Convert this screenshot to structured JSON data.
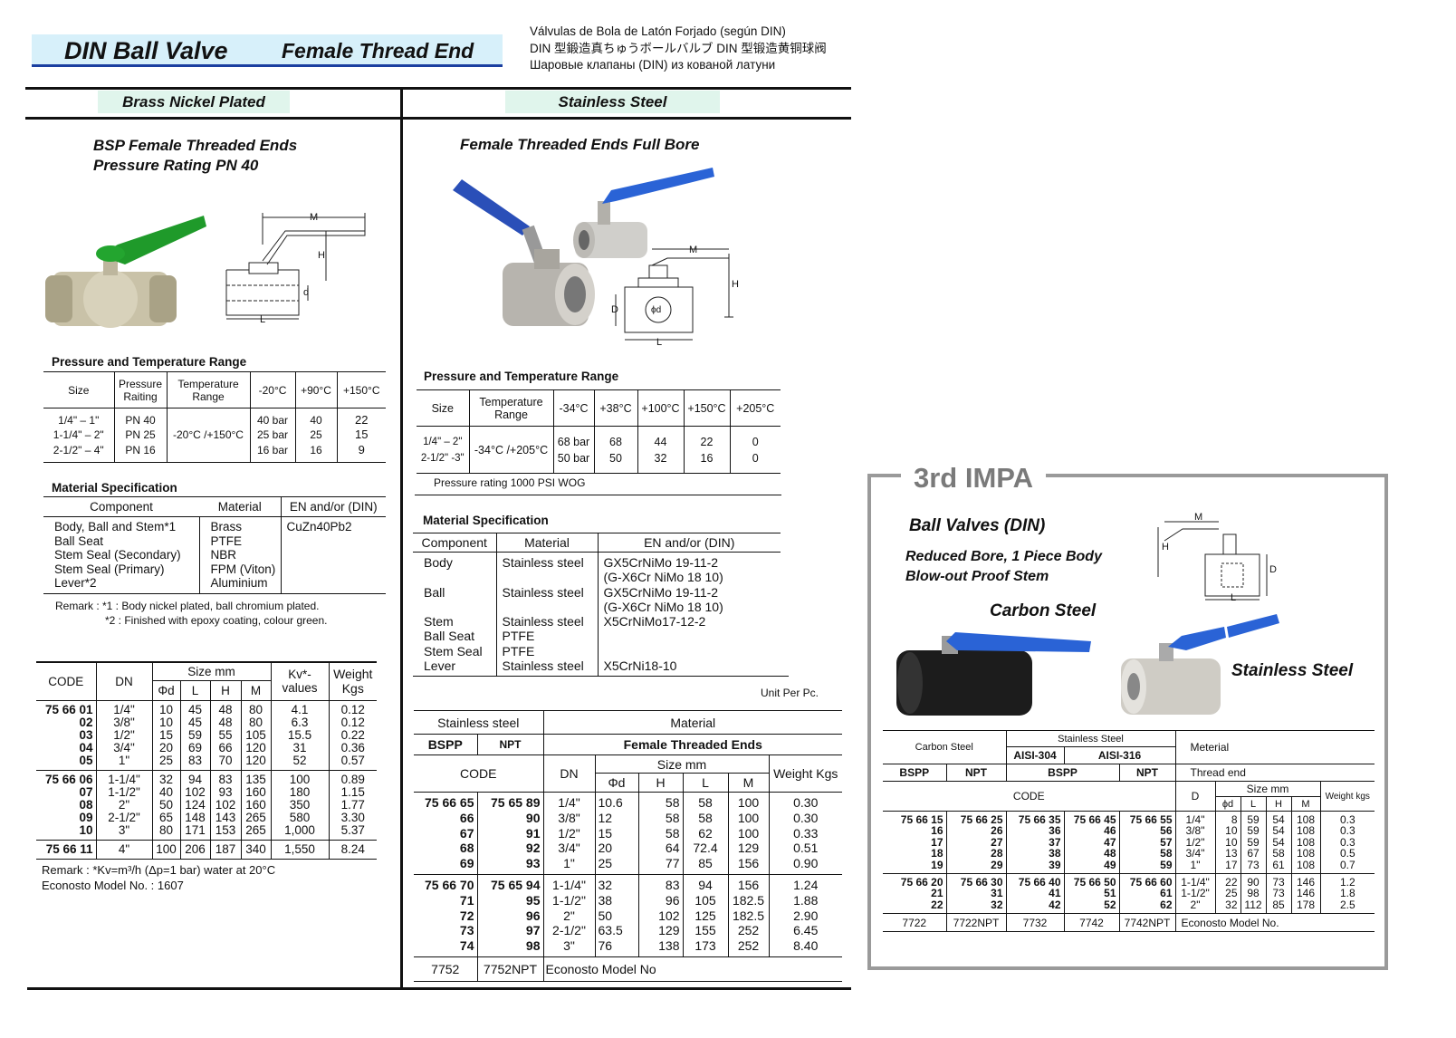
{
  "header": {
    "title": "DIN Ball Valve",
    "subtitle": "Female Thread End",
    "lang_es": "Válvulas de Bola de Latón Forjado (según DIN)",
    "lang_jp": "DIN 型鍛造真ちゅうボールバルブ  DIN 型锻造黄铜球阀",
    "lang_ru": "Шаровые клапаны (DIN) из кованой латуни"
  },
  "left": {
    "tag": "Brass Nickel Plated",
    "heading1": "BSP Female Threaded Ends",
    "heading2": "Pressure Rating PN 40",
    "diagram_labels": {
      "m": "M",
      "h": "H",
      "d": "d",
      "l": "L"
    },
    "pt_title": "Pressure and Temperature Range",
    "pt": {
      "h_size": "Size",
      "h_pressure": "Pressure Raiting",
      "h_temp": "Temperature Range",
      "h_t1": "-20°C",
      "h_t2": "+90°C",
      "h_t3": "+150°C",
      "sizes": [
        "1/4\" – 1\"",
        "1-1/4\" – 2\"",
        "2-1/2\" – 4\""
      ],
      "pressures": [
        "PN 40",
        "PN 25",
        "PN 16"
      ],
      "temp_range": "-20°C /+150°C",
      "t1": [
        "40 bar",
        "25 bar",
        "16 bar"
      ],
      "t2": [
        "40",
        "25",
        "16"
      ],
      "t3": [
        "22",
        "15",
        "9"
      ]
    },
    "ms_title": "Material Specification",
    "ms": {
      "h_component": "Component",
      "h_material": "Material",
      "h_en": "EN and/or (DIN)",
      "components": [
        "Body, Ball and Stem*1",
        "Ball Seat",
        "Stem Seal (Secondary)",
        "Stem Seal (Primary)",
        "Lever*2"
      ],
      "materials": [
        "Brass",
        "PTFE",
        "NBR",
        "FPM (Viton)",
        "Aluminium"
      ],
      "en": [
        "CuZn40Pb2"
      ]
    },
    "remark1": "Remark : *1 : Body nickel plated, ball chromium plated.",
    "remark2": "*2 : Finished with epoxy coating, colour green.",
    "codes": {
      "h_code": "CODE",
      "h_dn": "DN",
      "h_size": "Size mm",
      "h_d": "Φd",
      "h_l": "L",
      "h_h": "H",
      "h_m": "M",
      "h_kv": "Kv*- values",
      "h_weight": "Weight Kgs",
      "groups": [
        {
          "code": [
            "75 66 01",
            "02",
            "03",
            "04",
            "05"
          ],
          "dn": [
            "1/4\"",
            "3/8\"",
            "1/2\"",
            "3/4\"",
            "1\""
          ],
          "d": [
            "10",
            "10",
            "15",
            "20",
            "25"
          ],
          "l": [
            "45",
            "45",
            "59",
            "69",
            "83"
          ],
          "h": [
            "48",
            "48",
            "55",
            "66",
            "70"
          ],
          "m": [
            "80",
            "80",
            "105",
            "120",
            "120"
          ],
          "kv": [
            "4.1",
            "6.3",
            "15.5",
            "31",
            "52"
          ],
          "w": [
            "0.12",
            "0.12",
            "0.22",
            "0.36",
            "0.57"
          ]
        },
        {
          "code": [
            "75 66 06",
            "07",
            "08",
            "09",
            "10"
          ],
          "dn": [
            "1-1/4\"",
            "1-1/2\"",
            "2\"",
            "2-1/2\"",
            "3\""
          ],
          "d": [
            "32",
            "40",
            "50",
            "65",
            "80"
          ],
          "l": [
            "94",
            "102",
            "124",
            "148",
            "171"
          ],
          "h": [
            "83",
            "93",
            "102",
            "143",
            "153"
          ],
          "m": [
            "135",
            "160",
            "160",
            "265",
            "265"
          ],
          "kv": [
            "100",
            "180",
            "350",
            "580",
            "1,000"
          ],
          "w": [
            "0.89",
            "1.15",
            "1.77",
            "3.30",
            "5.37"
          ]
        },
        {
          "code": [
            "75 66 11"
          ],
          "dn": [
            "4\""
          ],
          "d": [
            "100"
          ],
          "l": [
            "206"
          ],
          "h": [
            "187"
          ],
          "m": [
            "340"
          ],
          "kv": [
            "1,550"
          ],
          "w": [
            "8.24"
          ]
        }
      ]
    },
    "remark3": "Remark : *Kv=m³/h (Δp=1 bar) water at 20°C",
    "model": "Econosto Model No. : 1607"
  },
  "middle": {
    "tag": "Stainless Steel",
    "heading": "Female Threaded Ends Full Bore",
    "diagram_labels": {
      "m": "M",
      "h": "H",
      "d": "ϕd",
      "D": "D",
      "l": "L"
    },
    "pt_title": "Pressure and Temperature Range",
    "pt": {
      "h_size": "Size",
      "h_temp": "Temperature Range",
      "h_t1": "-34°C",
      "h_t2": "+38°C",
      "h_t3": "+100°C",
      "h_t4": "+150°C",
      "h_t5": "+205°C",
      "sizes": [
        "1/4\" – 2\"",
        "2-1/2\" -3\""
      ],
      "temp_range": "-34°C /+205°C",
      "t1": [
        "68 bar",
        "50 bar"
      ],
      "t2": [
        "68",
        "50"
      ],
      "t3": [
        "44",
        "32"
      ],
      "t4": [
        "22",
        "16"
      ],
      "t5": [
        "0",
        "0"
      ]
    },
    "pt_note": "Pressure rating 1000 PSI WOG",
    "ms_title": "Material Specification",
    "ms": {
      "h_component": "Component",
      "h_material": "Material",
      "h_en": "EN and/or (DIN)",
      "components": [
        "Body",
        "",
        "Ball",
        "",
        "Stem",
        "Ball Seat",
        "Stem Seal",
        "Lever"
      ],
      "materials": [
        "Stainless steel",
        "",
        "Stainless steel",
        "",
        "Stainless steel",
        "PTFE",
        "PTFE",
        "Stainless steel"
      ],
      "en": [
        "GX5CrNiMo 19-11-2",
        "(G-X6Cr NiMo 18 10)",
        "GX5CrNiMo 19-11-2",
        "(G-X6Cr NiMo 18 10)",
        "X5CrNiMo17-12-2",
        "",
        "",
        "X5CrNi18-10"
      ]
    },
    "unit": "Unit Per Pc.",
    "codes": {
      "h_ss": "Stainless steel",
      "h_material": "Material",
      "h_bspp": "BSPP",
      "h_npt": "NPT",
      "h_fte": "Female Threaded Ends",
      "h_code": "CODE",
      "h_dn": "DN",
      "h_size": "Size mm",
      "h_d": "Φd",
      "h_h": "H",
      "h_l": "L",
      "h_m": "M",
      "h_weight": "Weight Kgs",
      "groups": [
        {
          "bspp": [
            "75 66 65",
            "66",
            "67",
            "68",
            "69"
          ],
          "npt": [
            "75 65 89",
            "90",
            "91",
            "92",
            "93"
          ],
          "dn": [
            "1/4\"",
            "3/8\"",
            "1/2\"",
            "3/4\"",
            "1\""
          ],
          "d": [
            "10.6",
            "12",
            "15",
            "20",
            "25"
          ],
          "h": [
            "58",
            "58",
            "58",
            "64",
            "77"
          ],
          "l": [
            "58",
            "58",
            "62",
            "72.4",
            "85"
          ],
          "m": [
            "100",
            "100",
            "100",
            "129",
            "156"
          ],
          "w": [
            "0.30",
            "0.30",
            "0.33",
            "0.51",
            "0.90"
          ]
        },
        {
          "bspp": [
            "75 66 70",
            "71",
            "72",
            "73",
            "74"
          ],
          "npt": [
            "75 65 94",
            "95",
            "96",
            "97",
            "98"
          ],
          "dn": [
            "1-1/4\"",
            "1-1/2\"",
            "2\"",
            "2-1/2\"",
            "3\""
          ],
          "d": [
            "32",
            "38",
            "50",
            "63.5",
            "76"
          ],
          "h": [
            "83",
            "96",
            "102",
            "129",
            "138"
          ],
          "l": [
            "94",
            "105",
            "125",
            "155",
            "173"
          ],
          "m": [
            "156",
            "182.5",
            "182.5",
            "252",
            "252"
          ],
          "w": [
            "1.24",
            "1.88",
            "2.90",
            "6.45",
            "8.40"
          ]
        }
      ],
      "model_bspp": "7752",
      "model_npt": "7752NPT",
      "model_label": "Econosto Model No"
    }
  },
  "right": {
    "box_title": "3rd IMPA",
    "heading": "Ball Valves (DIN)",
    "sub1": "Reduced Bore, 1 Piece Body",
    "sub2": "Blow-out Proof Stem",
    "carbon_label": "Carbon Steel",
    "stainless_label": "Stainless Steel",
    "diagram_labels": {
      "m": "M",
      "h": "H",
      "D": "D",
      "l": "L"
    },
    "table": {
      "h_carbon": "Carbon Steel",
      "h_stainless": "Stainless Steel",
      "h_304": "AISI-304",
      "h_316": "AISI-316",
      "h_material": "Meterial",
      "h_bspp": "BSPP",
      "h_npt": "NPT",
      "h_bspp2": "BSPP",
      "h_npt2": "NPT",
      "h_thread": "Thread end",
      "h_code": "CODE",
      "h_D": "D",
      "h_size": "Size mm",
      "h_d": "ϕd",
      "h_l": "L",
      "h_h": "H",
      "h_m": "M",
      "h_weight": "Weight kgs",
      "groups": [
        {
          "c1": [
            "75 66 15",
            "16",
            "17",
            "18",
            "19"
          ],
          "c2": [
            "75 66 25",
            "26",
            "27",
            "28",
            "29"
          ],
          "c3": [
            "75 66 35",
            "36",
            "37",
            "38",
            "39"
          ],
          "c4": [
            "75 66 45",
            "46",
            "47",
            "48",
            "49"
          ],
          "c5": [
            "75 66 55",
            "56",
            "57",
            "58",
            "59"
          ],
          "D": [
            "1/4\"",
            "3/8\"",
            "1/2\"",
            "3/4\"",
            "1\""
          ],
          "d": [
            "8",
            "10",
            "10",
            "13",
            "17"
          ],
          "l": [
            "59",
            "59",
            "59",
            "67",
            "73"
          ],
          "h": [
            "54",
            "54",
            "54",
            "58",
            "61"
          ],
          "m": [
            "108",
            "108",
            "108",
            "108",
            "108"
          ],
          "w": [
            "0.3",
            "0.3",
            "0.3",
            "0.5",
            "0.7"
          ]
        },
        {
          "c1": [
            "75 66 20",
            "21",
            "22"
          ],
          "c2": [
            "75 66 30",
            "31",
            "32"
          ],
          "c3": [
            "75 66 40",
            "41",
            "42"
          ],
          "c4": [
            "75 66 50",
            "51",
            "52"
          ],
          "c5": [
            "75 66 60",
            "61",
            "62"
          ],
          "D": [
            "1-1/4\"",
            "1-1/2\"",
            "2\""
          ],
          "d": [
            "22",
            "25",
            "32"
          ],
          "l": [
            "90",
            "98",
            "112"
          ],
          "h": [
            "73",
            "73",
            "85"
          ],
          "m": [
            "146",
            "146",
            "178"
          ],
          "w": [
            "1.2",
            "1.8",
            "2.5"
          ]
        }
      ],
      "models": [
        "7722",
        "7722NPT",
        "7732",
        "7742",
        "7742NPT"
      ],
      "model_label": "Econosto Model No."
    }
  },
  "colors": {
    "banner": "#d7f0fa",
    "banner_rule": "#1b3fa0",
    "tag": "#e0f5ec",
    "green_handle": "#1f9a2a",
    "blue_handle": "#2a63d6",
    "box_border": "#9a9a9a"
  }
}
